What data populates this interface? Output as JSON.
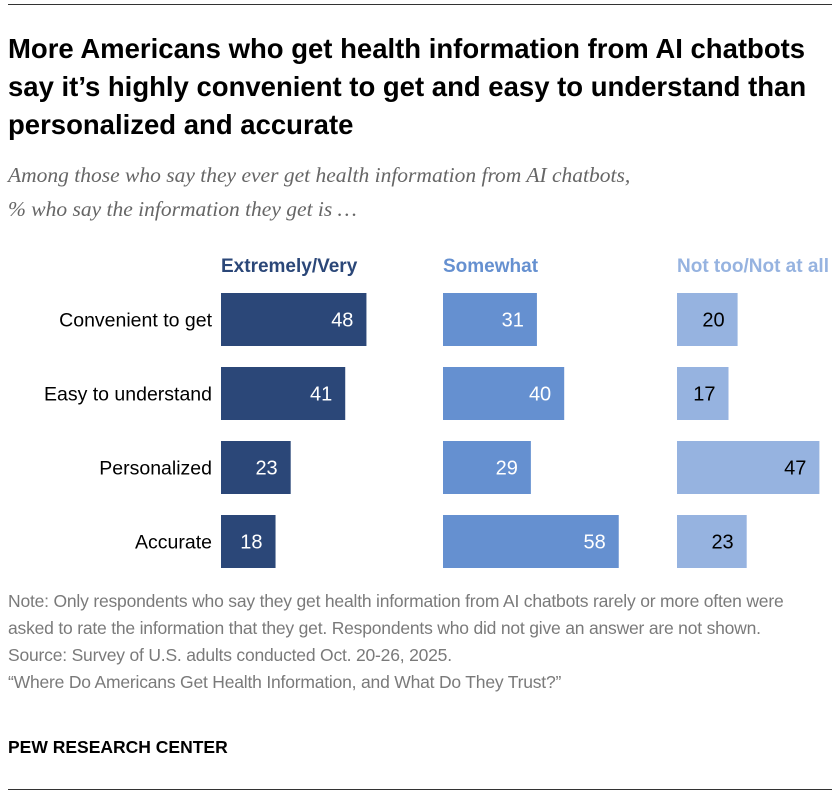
{
  "title": "More Americans who get health information from AI chatbots say it’s highly convenient to get and easy to understand than personalized and accurate",
  "subtitle_lines": [
    "Among those who say they ever get health information from AI chatbots,",
    "% who say the information they get is …"
  ],
  "chart_data": {
    "type": "bar",
    "orientation": "horizontal",
    "layout": "small-multiples",
    "categories": [
      "Convenient to get",
      "Easy to understand",
      "Personalized",
      "Accurate"
    ],
    "series": [
      {
        "name": "Extremely/Very",
        "color": "#2b4778",
        "label_color": "#ffffff",
        "values": [
          48,
          41,
          23,
          18
        ]
      },
      {
        "name": "Somewhat",
        "color": "#6590d0",
        "label_color": "#ffffff",
        "values": [
          31,
          40,
          29,
          58
        ]
      },
      {
        "name": "Not too/Not at all",
        "color": "#96b3e0",
        "label_color": "#000000",
        "values": [
          20,
          17,
          47,
          23
        ]
      }
    ],
    "unit": "%",
    "grid": false,
    "legend": "top, as column headers"
  },
  "notes": {
    "note": "Note: Only respondents who say they get health information from AI chatbots rarely or more often were asked to rate the information that they get. Respondents who did not give an answer are not shown.",
    "source": "Source: Survey of U.S. adults conducted Oct. 20-26, 2025.",
    "report": "“Where Do Americans Get Health Information, and What Do They Trust?”"
  },
  "brand": "PEW RESEARCH CENTER"
}
